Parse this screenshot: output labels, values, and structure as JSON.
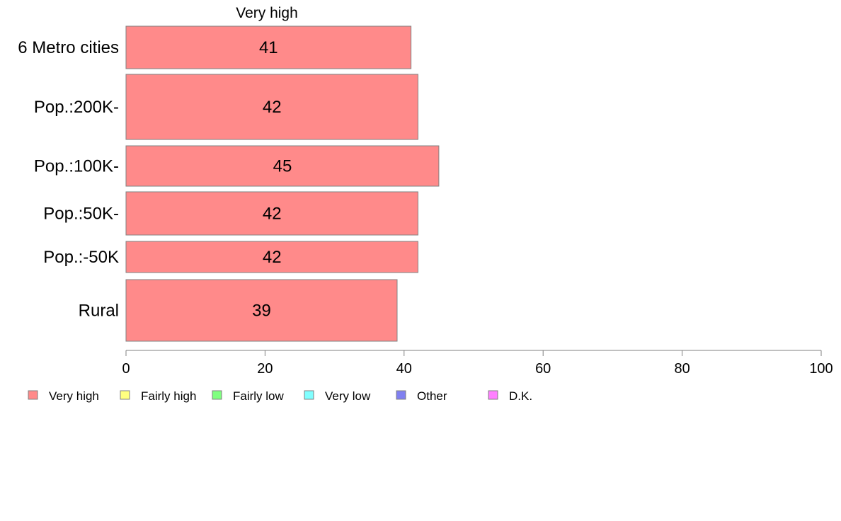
{
  "chart_data": {
    "type": "bar",
    "orientation": "horizontal",
    "stacked": true,
    "column_label": "Very high",
    "categories": [
      "6 Metro cities",
      "Pop.:200K-",
      "Pop.:100K-",
      "Pop.:50K-",
      "Pop.:-50K",
      "Rural"
    ],
    "series": [
      {
        "name": "Very high",
        "values": [
          41,
          42,
          45,
          42,
          42,
          39
        ],
        "color": "#ff8a8a"
      }
    ],
    "xlim": [
      0,
      100
    ],
    "xticks": [
      0,
      20,
      40,
      60,
      80,
      100
    ],
    "grid": false,
    "legend": {
      "position": "bottom",
      "items": [
        {
          "label": "Very high",
          "color": "#ff8a8a"
        },
        {
          "label": "Fairly high",
          "color": "#ffff80"
        },
        {
          "label": "Fairly low",
          "color": "#80ff80"
        },
        {
          "label": "Very low",
          "color": "#80ffff"
        },
        {
          "label": "Other",
          "color": "#8080f0"
        },
        {
          "label": "D.K.",
          "color": "#ff80ff"
        }
      ]
    }
  }
}
